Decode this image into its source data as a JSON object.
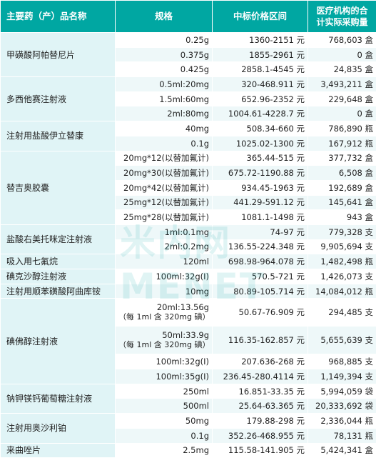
{
  "header": {
    "col1": "主要药（产）品名称",
    "col2": "规格",
    "col3": "中标价格区间",
    "col4_line1": "医疗机构的合",
    "col4_line2": "计实际采购量"
  },
  "rows": [
    {
      "name": "甲磺酸阿帕替尼片",
      "span": 3,
      "spec": "0.25g",
      "price": "1360-2151 元",
      "vol": "768,603 盒"
    },
    {
      "spec": "0.375g",
      "price": "1855-2961 元",
      "vol": "0 盒"
    },
    {
      "spec": "0.425g",
      "price": "2858.1-4545 元",
      "vol": "24,835 盒"
    },
    {
      "name": "多西他赛注射液",
      "span": 3,
      "spec": "0.5ml:20mg",
      "price": "320-468.911 元",
      "vol": "3,493,211 盒"
    },
    {
      "spec": "1.5ml:60mg",
      "price": "652.96-2352 元",
      "vol": "229,648 盒"
    },
    {
      "spec": "2ml:80mg",
      "price": "1004.61-4228.7 元",
      "vol": "0 盒"
    },
    {
      "name": "注射用盐酸伊立替康",
      "span": 2,
      "spec": "40mg",
      "price": "508.34-660 元",
      "vol": "786,890 瓶"
    },
    {
      "spec": "0.1g",
      "price": "1025.02-1300 元",
      "vol": "167,912 瓶"
    },
    {
      "name": "替吉奥胶囊",
      "span": 5,
      "spec": "20mg*12(以替加氟计)",
      "price": "365.44-515 元",
      "vol": "377,732 盒"
    },
    {
      "spec": "20mg*30(以替加氟计)",
      "price": "675.72-1190.88 元",
      "vol": "6,508 盒"
    },
    {
      "spec": "20mg*42(以替加氟计)",
      "price": "934.45-1963 元",
      "vol": "192,689 盒"
    },
    {
      "spec": "25mg*12(以替加氟计)",
      "price": "441.29-591.12 元",
      "vol": "145,641 盒"
    },
    {
      "spec": "25mg*28(以替加氟计)",
      "price": "1081.1-1498 元",
      "vol": "943 盒"
    },
    {
      "name": "盐酸右美托咪定注射液",
      "span": 2,
      "spec": "1ml:0.1mg",
      "price": "74-97 元",
      "vol": "779,328 支"
    },
    {
      "spec": "2ml:0.2mg",
      "price": "136.55-224.348 元",
      "vol": "9,905,694 支"
    },
    {
      "name": "吸入用七氟烷",
      "span": 1,
      "spec": "120ml",
      "price": "698.98-964.078 元",
      "vol": "1,482,498 瓶"
    },
    {
      "name": "碘克沙醇注射液",
      "span": 1,
      "spec": "100ml:32g(I)",
      "price": "570.5-721 元",
      "vol": "1,426,073 支"
    },
    {
      "name": "注射用顺苯磺酸阿曲库铵",
      "span": 1,
      "spec": "10mg",
      "price": "80.89-105.714 元",
      "vol": "14,084,012 瓶"
    },
    {
      "name": "碘佛醇注射液",
      "span": 4,
      "spec": "20ml:13.56g",
      "spec2": "（每 1ml 含 320mg 碘）",
      "tall": true,
      "price": "50.67-76.909 元",
      "vol": "294,485 支"
    },
    {
      "spec": "50ml:33.9g",
      "spec2": "（每 1ml 含 320mg 碘）",
      "tall": true,
      "price": "116.35-162.857 元",
      "vol": "5,655,639 支"
    },
    {
      "spec": "100ml:32g(I)",
      "price": "207.636-268 元",
      "vol": "968,885 支"
    },
    {
      "spec": "100ml:35g(I)",
      "price": "236.45-280.4114 元",
      "vol": "1,149,394 支"
    },
    {
      "name": "钠钾镁钙葡萄糖注射液",
      "span": 2,
      "spec": "250ml",
      "price": "16.851-33.35 元",
      "vol": "5,994,059 袋"
    },
    {
      "spec": "500ml",
      "price": "25.64-63.365 元",
      "vol": "20,333,692 袋"
    },
    {
      "name": "注射用奥沙利铂",
      "span": 2,
      "spec": "50mg",
      "price": "179.88-298 元",
      "vol": "2,336,044 瓶"
    },
    {
      "spec": "0.1g",
      "price": "352.26-468.955 元",
      "vol": "78,131 瓶"
    },
    {
      "name": "来曲唑片",
      "span": 1,
      "spec": "2.5mg",
      "price": "115.58-141.905 元",
      "vol": "5,424,341 盒"
    }
  ],
  "watermark": "米内网"
}
